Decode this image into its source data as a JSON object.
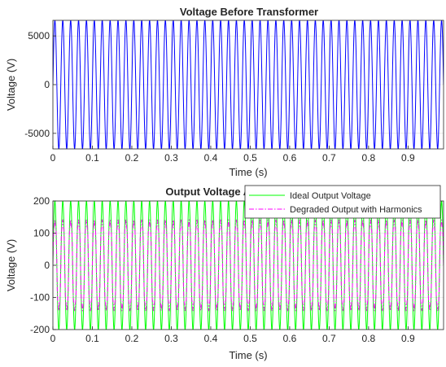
{
  "chart_data": [
    {
      "type": "line",
      "title": "Voltage Before Transformer",
      "xlabel": "Time (s)",
      "ylabel": "Voltage (V)",
      "xlim": [
        0,
        0.99
      ],
      "ylim": [
        -6600,
        6600
      ],
      "xticks": [
        "0",
        "0.1",
        "0.2",
        "0.3",
        "0.4",
        "0.5",
        "0.6",
        "0.7",
        "0.8",
        "0.9"
      ],
      "yticks": [
        "-5000",
        "0",
        "5000"
      ],
      "grid": true,
      "series": [
        {
          "name": "",
          "color": "#0000ff",
          "waveform": "sine",
          "frequency_hz": 50,
          "amplitude": 6600
        }
      ]
    },
    {
      "type": "line",
      "title": "Output Voltage After Transformer",
      "xlabel": "Time (s)",
      "ylabel": "Voltage (V)",
      "xlim": [
        0,
        0.99
      ],
      "ylim": [
        -200,
        200
      ],
      "xticks": [
        "0",
        "0.1",
        "0.2",
        "0.3",
        "0.4",
        "0.5",
        "0.6",
        "0.7",
        "0.8",
        "0.9"
      ],
      "yticks": [
        "-200",
        "-100",
        "0",
        "100",
        "200"
      ],
      "grid": true,
      "legend_position": "top-right",
      "series": [
        {
          "name": "Ideal Output Voltage",
          "color": "#00ff00",
          "style": "solid",
          "waveform": "sine",
          "frequency_hz": 50,
          "amplitude": 200
        },
        {
          "name": "Degraded Output with Harmonics",
          "color": "#ff00ff",
          "style": "dash-dot",
          "waveform": "sine with harmonics",
          "frequency_hz": 50,
          "amplitude": 150
        }
      ]
    }
  ]
}
